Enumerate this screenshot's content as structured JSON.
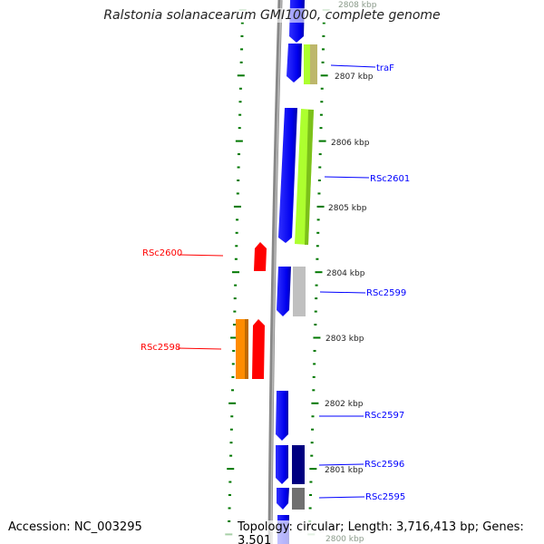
{
  "title": "Ralstonia solanacearum GMI1000, complete genome",
  "accession": "Accession: NC_003295",
  "summary": "Topology: circular; Length: 3,716,413 bp; Genes: 3,501",
  "kbp_labels": [
    "2808 kbp",
    "2807 kbp",
    "2806 kbp",
    "2805 kbp",
    "2804 kbp",
    "2803 kbp",
    "2802 kbp",
    "2801 kbp",
    "2800 kbp"
  ],
  "gene_labels": {
    "traF": "traF",
    "rsc2601": "RSc2601",
    "rsc2600": "RSc2600",
    "rsc2599": "RSc2599",
    "rsc2598": "RSc2598",
    "rsc2597": "RSc2597",
    "rsc2596": "RSc2596",
    "rsc2595": "RSc2595"
  },
  "colors": {
    "reverse": "#0000ff",
    "forward_label": "#0000ff",
    "red_label": "#ff0000",
    "ticks": "#007700",
    "backbone": "#888888"
  }
}
